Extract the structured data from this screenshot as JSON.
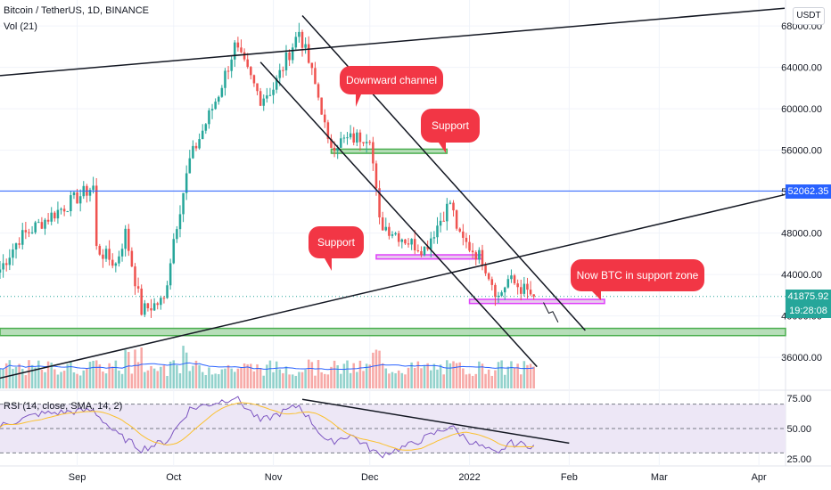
{
  "header": {
    "symbol_line": "Bitcoin / TetherUS, 1D, BINANCE",
    "volume_label": "Vol (21)",
    "rsi_label": "RSI (14, close, SMA, 14, 2)"
  },
  "currency_button": "USDT",
  "price_tags": {
    "resistance_line": "52062.35",
    "last_price": "41875.92",
    "countdown": "19:28:08"
  },
  "colors": {
    "up": "#26a69a",
    "down": "#ef5350",
    "accent_blue": "#2962ff",
    "callout": "#f23645",
    "support_fill": "#a5d6a7",
    "support_border_pink": "#e040fb",
    "rsi_line": "#7e57c2",
    "rsi_ma": "#fbc02d",
    "rsi_band": "#ede7f6"
  },
  "annotations": [
    {
      "id": "downward-channel",
      "text": "Downward channel"
    },
    {
      "id": "support-upper",
      "text": "Support"
    },
    {
      "id": "support-mid",
      "text": "Support"
    },
    {
      "id": "now-support",
      "text": "Now BTC in support zone"
    }
  ],
  "chart_data": {
    "type": "candlestick",
    "title": "Bitcoin / TetherUS, 1D, BINANCE",
    "x_ticks": [
      "Sep",
      "Oct",
      "Nov",
      "Dec",
      "2022",
      "Feb",
      "Mar",
      "Apr"
    ],
    "y_ticks": [
      "68000.00",
      "64000.00",
      "60000.00",
      "56000.00",
      "52000.00",
      "48000.00",
      "44000.00",
      "40000.00",
      "36000.00"
    ],
    "ylim": [
      33000,
      70500
    ],
    "x_range_days": [
      "2021-08-08",
      "2022-04-09"
    ],
    "horizontal_level": 52062.35,
    "last_price": 41875.92,
    "price_waypoints": [
      [
        "2021-08-08",
        44500
      ],
      [
        "2021-08-14",
        47500
      ],
      [
        "2021-08-23",
        49500
      ],
      [
        "2021-09-06",
        52500
      ],
      [
        "2021-09-07",
        46500
      ],
      [
        "2021-09-13",
        45000
      ],
      [
        "2021-09-16",
        48000
      ],
      [
        "2021-09-21",
        40500
      ],
      [
        "2021-09-28",
        41500
      ],
      [
        "2021-10-01",
        47500
      ],
      [
        "2021-10-06",
        55000
      ],
      [
        "2021-10-15",
        61500
      ],
      [
        "2021-10-20",
        66000
      ],
      [
        "2021-10-28",
        61000
      ],
      [
        "2021-11-01",
        62000
      ],
      [
        "2021-11-09",
        67500
      ],
      [
        "2021-11-12",
        64500
      ],
      [
        "2021-11-16",
        60000
      ],
      [
        "2021-11-18",
        56500
      ],
      [
        "2021-11-24",
        57000
      ],
      [
        "2021-12-01",
        57500
      ],
      [
        "2021-12-04",
        49000
      ],
      [
        "2021-12-14",
        47000
      ],
      [
        "2021-12-18",
        46500
      ],
      [
        "2021-12-26",
        51000
      ],
      [
        "2021-12-29",
        47500
      ],
      [
        "2022-01-05",
        45500
      ],
      [
        "2022-01-10",
        41800
      ],
      [
        "2022-01-13",
        43500
      ],
      [
        "2022-01-18",
        42500
      ],
      [
        "2022-01-21",
        41875.92
      ]
    ],
    "support_zones": [
      {
        "label": "Support",
        "from": 55700,
        "to": 56100
      },
      {
        "label": "Support",
        "from": 45500,
        "to": 45900
      },
      {
        "label": "Now BTC in support zone",
        "from": 41200,
        "to": 41600
      },
      {
        "label": "",
        "from": 38100,
        "to": 38800
      }
    ],
    "volume": {
      "label": "Vol (21)",
      "ma_length": 21
    },
    "rsi": {
      "label": "RSI (14, close, SMA, 14, 2)",
      "y_ticks": [
        "75.00",
        "50.00",
        "25.00"
      ],
      "levels": [
        70,
        50,
        30
      ],
      "ylim": [
        20,
        80
      ],
      "waypoints": [
        [
          "2021-08-08",
          52
        ],
        [
          "2021-08-20",
          62
        ],
        [
          "2021-09-06",
          65
        ],
        [
          "2021-09-13",
          46
        ],
        [
          "2021-09-21",
          33
        ],
        [
          "2021-09-29",
          40
        ],
        [
          "2021-10-06",
          66
        ],
        [
          "2021-10-15",
          72
        ],
        [
          "2021-10-20",
          76
        ],
        [
          "2021-10-28",
          56
        ],
        [
          "2021-11-09",
          69
        ],
        [
          "2021-11-18",
          38
        ],
        [
          "2021-11-25",
          45
        ],
        [
          "2021-12-04",
          28
        ],
        [
          "2021-12-14",
          37
        ],
        [
          "2021-12-26",
          52
        ],
        [
          "2022-01-01",
          40
        ],
        [
          "2022-01-10",
          28
        ],
        [
          "2022-01-13",
          38
        ],
        [
          "2022-01-21",
          36
        ]
      ]
    }
  }
}
